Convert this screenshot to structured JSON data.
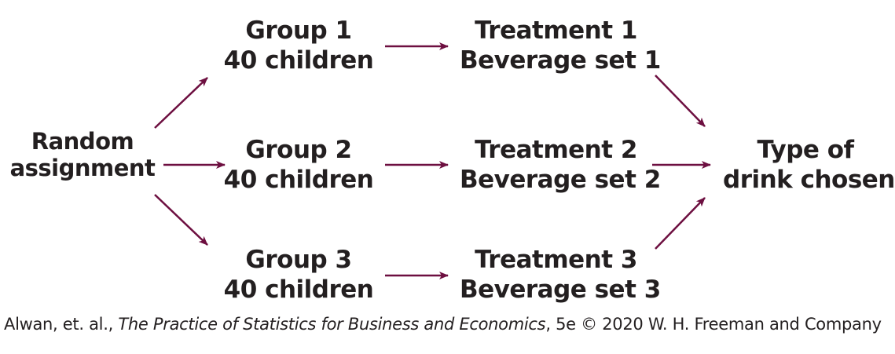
{
  "diagram": {
    "random_assignment": {
      "line1": "Random",
      "line2": "assignment"
    },
    "groups": [
      {
        "line1": "Group 1",
        "line2": "40 children"
      },
      {
        "line1": "Group 2",
        "line2": "40 children"
      },
      {
        "line1": "Group 3",
        "line2": "40 children"
      }
    ],
    "treatments": [
      {
        "line1": "Treatment 1",
        "line2": "Beverage set 1"
      },
      {
        "line1": "Treatment 2",
        "line2": "Beverage set 2"
      },
      {
        "line1": "Treatment 3",
        "line2": "Beverage set 3"
      }
    ],
    "outcome": {
      "line1": "Type of",
      "line2": "drink chosen"
    },
    "arrow_color": "#6d0f40",
    "text_color": "#231f20"
  },
  "caption": {
    "authors": "Alwan, et. al., ",
    "book_title": "The Practice of Statistics for Business and Economics",
    "edition_and_copyright": ", 5e © 2020 W. H. Freeman and Company"
  }
}
